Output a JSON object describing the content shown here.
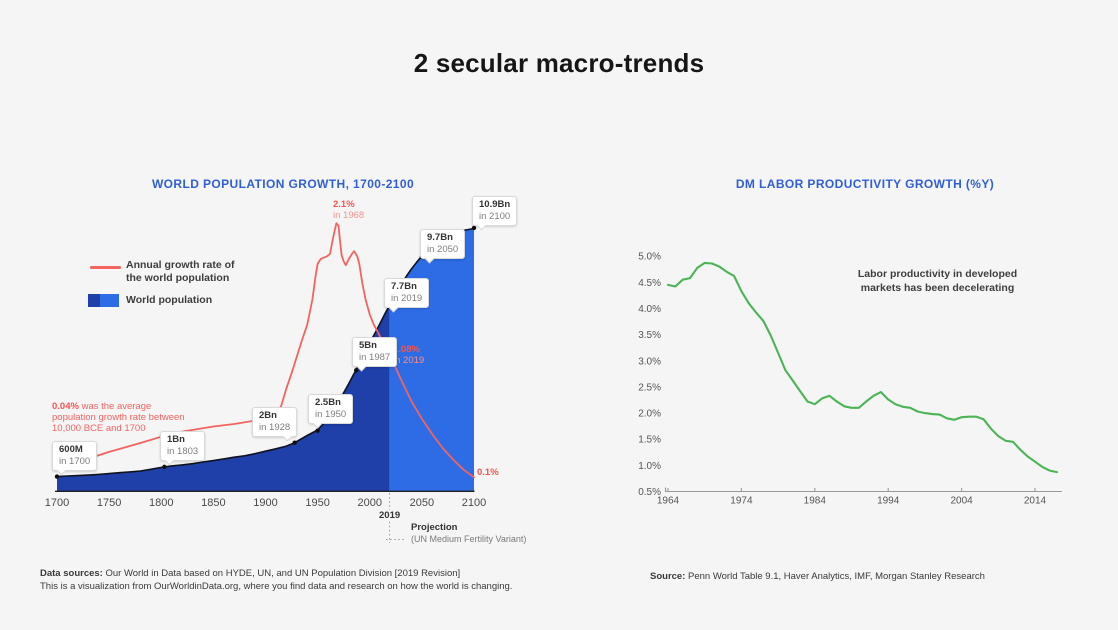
{
  "slide": {
    "title": "2 secular macro-trends"
  },
  "chart_data": [
    {
      "type": "area+line",
      "title": "WORLD POPULATION GROWTH, 1700-2100",
      "x_tick_labels": [
        "1700",
        "1750",
        "1800",
        "1850",
        "1900",
        "1950",
        "2000",
        "2050",
        "2100"
      ],
      "xlim": [
        1700,
        2100
      ],
      "grid": false,
      "legend_position": "upper-left",
      "legend": [
        {
          "swatch": "line",
          "label": "Annual growth rate of the world population"
        },
        {
          "swatch": "area",
          "label": "World population"
        }
      ],
      "series": [
        {
          "name": "World population",
          "type": "area",
          "unit": "billions",
          "projection_from": 2019,
          "x": [
            1700,
            1710,
            1720,
            1730,
            1740,
            1750,
            1760,
            1770,
            1780,
            1790,
            1800,
            1803,
            1810,
            1820,
            1830,
            1840,
            1850,
            1860,
            1870,
            1880,
            1890,
            1900,
            1910,
            1920,
            1928,
            1930,
            1940,
            1950,
            1955,
            1960,
            1965,
            1970,
            1975,
            1980,
            1985,
            1987,
            1990,
            1995,
            2000,
            2005,
            2010,
            2015,
            2019,
            2025,
            2030,
            2035,
            2040,
            2045,
            2050,
            2060,
            2070,
            2080,
            2090,
            2100
          ],
          "y": [
            0.6,
            0.62,
            0.64,
            0.66,
            0.69,
            0.72,
            0.76,
            0.79,
            0.83,
            0.9,
            0.98,
            1.0,
            1.04,
            1.08,
            1.13,
            1.2,
            1.26,
            1.33,
            1.4,
            1.46,
            1.55,
            1.65,
            1.75,
            1.86,
            2.0,
            2.05,
            2.3,
            2.53,
            2.77,
            3.03,
            3.34,
            3.7,
            4.07,
            4.46,
            4.87,
            5.0,
            5.33,
            5.74,
            6.14,
            6.54,
            6.96,
            7.38,
            7.7,
            8.18,
            8.55,
            8.89,
            9.2,
            9.48,
            9.74,
            10.15,
            10.46,
            10.67,
            10.8,
            10.88
          ]
        },
        {
          "name": "Annual growth rate of the world population",
          "type": "line",
          "unit": "%",
          "x": [
            1700,
            1720,
            1750,
            1780,
            1800,
            1820,
            1850,
            1870,
            1900,
            1910,
            1915,
            1920,
            1925,
            1930,
            1935,
            1940,
            1945,
            1948,
            1950,
            1953,
            1956,
            1959,
            1962,
            1964,
            1966,
            1968,
            1970,
            1971,
            1973,
            1975,
            1977,
            1980,
            1983,
            1985,
            1988,
            1990,
            1993,
            1996,
            2000,
            2004,
            2008,
            2012,
            2016,
            2019,
            2025,
            2030,
            2040,
            2050,
            2060,
            2070,
            2080,
            2090,
            2100
          ],
          "y": [
            0.18,
            0.22,
            0.3,
            0.37,
            0.42,
            0.46,
            0.5,
            0.52,
            0.56,
            0.6,
            0.66,
            0.8,
            0.92,
            1.05,
            1.18,
            1.3,
            1.5,
            1.68,
            1.78,
            1.82,
            1.83,
            1.84,
            1.86,
            1.95,
            2.03,
            2.1,
            2.08,
            2.0,
            1.85,
            1.8,
            1.77,
            1.82,
            1.86,
            1.88,
            1.84,
            1.78,
            1.62,
            1.5,
            1.38,
            1.3,
            1.24,
            1.17,
            1.12,
            1.08,
            0.96,
            0.87,
            0.7,
            0.56,
            0.44,
            0.33,
            0.24,
            0.16,
            0.1
          ]
        }
      ],
      "annotations": {
        "milestones": [
          {
            "value": "600M",
            "year_label": "in 1700",
            "year": 1700,
            "pop": 0.6
          },
          {
            "value": "1Bn",
            "year_label": "in 1803",
            "year": 1803,
            "pop": 1.0
          },
          {
            "value": "2Bn",
            "year_label": "in 1928",
            "year": 1928,
            "pop": 2.0
          },
          {
            "value": "2.5Bn",
            "year_label": "in 1950",
            "year": 1950,
            "pop": 2.5
          },
          {
            "value": "5Bn",
            "year_label": "in 1987",
            "year": 1987,
            "pop": 5.0
          },
          {
            "value": "7.7Bn",
            "year_label": "in 2019",
            "year": 2019,
            "pop": 7.7
          },
          {
            "value": "9.7Bn",
            "year_label": "in 2050",
            "year": 2050,
            "pop": 9.7
          },
          {
            "value": "10.9Bn",
            "year_label": "in 2100",
            "year": 2100,
            "pop": 10.9
          }
        ],
        "growth_notes": [
          {
            "value": "2.1%",
            "year_label": "in 1968"
          },
          {
            "value": "1.08%",
            "year_label": "in 2019"
          },
          {
            "value": "0.1%",
            "year_label": ""
          }
        ],
        "historical_note_bold": "0.04%",
        "historical_note_rest": " was the average population growth rate between 10,000 BCE and 1700",
        "projection_marker": "2019",
        "projection_label": "Projection",
        "projection_sublabel": "(UN Medium Fertility Variant)"
      },
      "colors": {
        "historical_area": "#1f3fa9",
        "projection_area": "#2e6ce5",
        "outline": "#10131d",
        "rate_line": "#f4635e",
        "title": "#2f5fd6"
      },
      "footer_bold": "Data sources:",
      "footer_rest": " Our World in Data based on HYDE, UN, and UN Population Division [2019 Revision]",
      "footer_line2": "This is a visualization from OurWorldinData.org, where you find data and research on how the world is changing."
    },
    {
      "type": "line",
      "title": "DM LABOR PRODUCTIVITY GROWTH (%Y)",
      "annotation": "Labor productivity in developed markets has been decelerating",
      "x": [
        1964,
        1965,
        1966,
        1967,
        1968,
        1969,
        1970,
        1971,
        1972,
        1973,
        1974,
        1975,
        1976,
        1977,
        1978,
        1979,
        1980,
        1981,
        1982,
        1983,
        1984,
        1985,
        1986,
        1987,
        1988,
        1989,
        1990,
        1991,
        1992,
        1993,
        1994,
        1995,
        1996,
        1997,
        1998,
        1999,
        2000,
        2001,
        2002,
        2003,
        2004,
        2005,
        2006,
        2007,
        2008,
        2009,
        2010,
        2011,
        2012,
        2013,
        2014,
        2015,
        2016,
        2017
      ],
      "y": [
        4.45,
        4.42,
        4.55,
        4.58,
        4.78,
        4.87,
        4.86,
        4.8,
        4.7,
        4.62,
        4.33,
        4.1,
        3.92,
        3.76,
        3.48,
        3.15,
        2.82,
        2.62,
        2.42,
        2.22,
        2.17,
        2.28,
        2.33,
        2.22,
        2.13,
        2.1,
        2.1,
        2.22,
        2.33,
        2.4,
        2.26,
        2.17,
        2.12,
        2.1,
        2.03,
        2.0,
        1.98,
        1.97,
        1.9,
        1.87,
        1.92,
        1.93,
        1.93,
        1.88,
        1.7,
        1.56,
        1.47,
        1.45,
        1.3,
        1.17,
        1.07,
        0.97,
        0.9,
        0.87
      ],
      "ylim": [
        0.5,
        5.0
      ],
      "grid": false,
      "y_tick_labels": [
        "0.5%",
        "1.0%",
        "1.5%",
        "2.0%",
        "2.5%",
        "3.0%",
        "3.5%",
        "4.0%",
        "4.5%",
        "5.0%"
      ],
      "x_tick_labels": [
        "1964",
        "1974",
        "1984",
        "1994",
        "2004",
        "2014"
      ],
      "colors": {
        "line": "#4bb455",
        "title": "#2f5fd6"
      },
      "footer_bold": "Source:",
      "footer_rest": " Penn World Table 9.1, Haver Analytics, IMF, Morgan Stanley Research"
    }
  ]
}
